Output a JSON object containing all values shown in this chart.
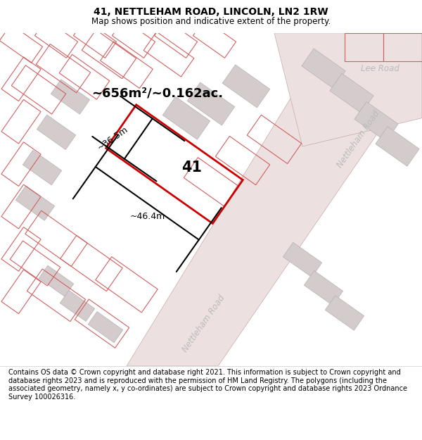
{
  "title": "41, NETTLEHAM ROAD, LINCOLN, LN2 1RW",
  "subtitle": "Map shows position and indicative extent of the property.",
  "footer": "Contains OS data © Crown copyright and database right 2021. This information is subject to Crown copyright and database rights 2023 and is reproduced with the permission of HM Land Registry. The polygons (including the associated geometry, namely x, y co-ordinates) are subject to Crown copyright and database rights 2023 Ordnance Survey 100026316.",
  "area_label": "~656m²/~0.162ac.",
  "width_label": "~46.4m",
  "height_label": "~36.5m",
  "property_number": "41",
  "bg_color": "#f7f4f4",
  "road_fill": "#ede0e0",
  "road_edge": "#c8a8a8",
  "building_fill": "#d4cccc",
  "building_edge": "#b8b0b0",
  "highlight_color": "#cc0000",
  "pink_outline": "#d06060",
  "title_fontsize": 10,
  "subtitle_fontsize": 8.5,
  "footer_fontsize": 7.0,
  "road_label_color": "#bbbbbb",
  "road_label_fontsize": 8.5
}
